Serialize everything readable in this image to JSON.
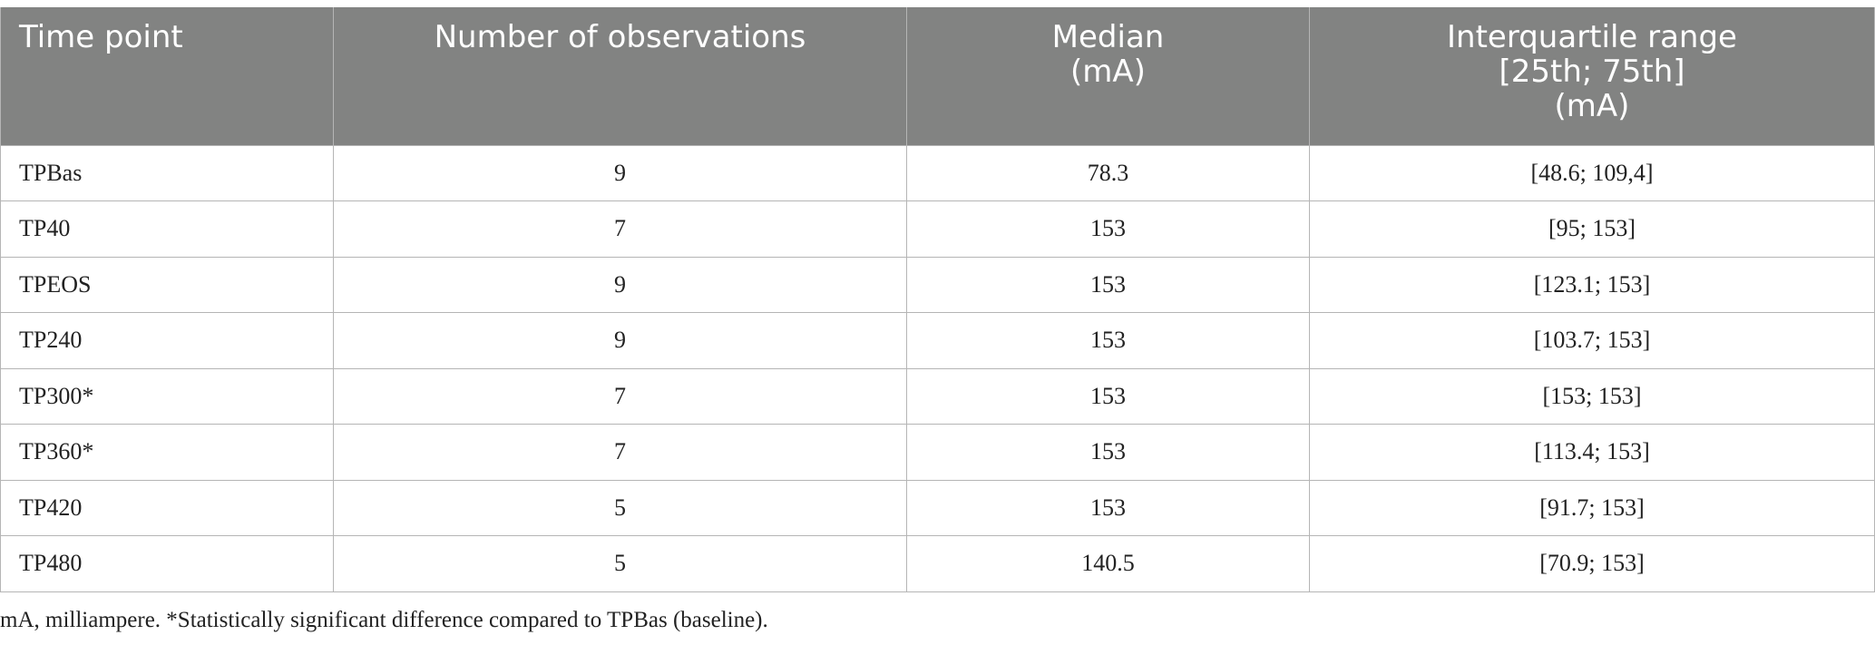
{
  "table": {
    "headers": [
      "Time point",
      "Number of observations",
      "Median\n(mA)",
      "Interquartile range\n[25th; 75th]\n(mA)"
    ],
    "rows": [
      [
        "TPBas",
        "9",
        "78.3",
        "[48.6; 109,4]"
      ],
      [
        "TP40",
        "7",
        "153",
        "[95; 153]"
      ],
      [
        "TPEOS",
        "9",
        "153",
        "[123.1; 153]"
      ],
      [
        "TP240",
        "9",
        "153",
        "[103.7; 153]"
      ],
      [
        "TP300*",
        "7",
        "153",
        "[153; 153]"
      ],
      [
        "TP360*",
        "7",
        "153",
        "[113.4; 153]"
      ],
      [
        "TP420",
        "5",
        "153",
        "[91.7; 153]"
      ],
      [
        "TP480",
        "5",
        "140.5",
        "[70.9; 153]"
      ]
    ]
  },
  "footnote": "mA, milliampere. *Statistically significant difference compared to TPBas (baseline).",
  "colors": {
    "header_bg": "#828382",
    "header_text": "#ffffff",
    "border": "#b5b5b5"
  }
}
